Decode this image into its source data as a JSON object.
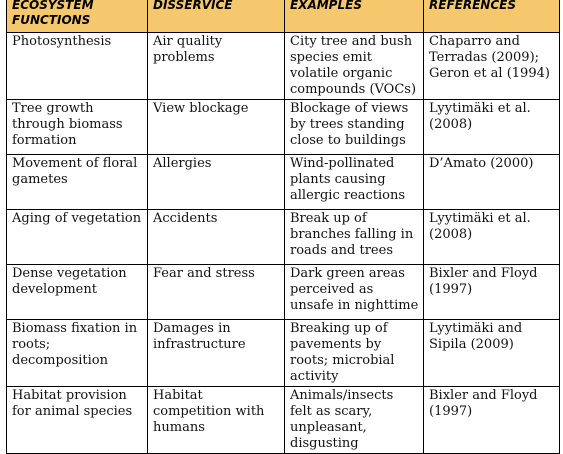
{
  "table": {
    "headers": [
      "ECOSYSTEM\nFUNCTIONS",
      "DISSERVICE",
      "EXAMPLES",
      "REFERENCES"
    ],
    "header_color": "#f6c86e",
    "rows": [
      [
        "Photosynthesis",
        "Air quality\nproblems",
        "City tree and bush\nspecies emit\nvolatile organic\ncompounds (VOCs)",
        "Chaparro and\nTerradas (2009);\nGeron et al (1994)"
      ],
      [
        "Tree growth\nthrough biomass\nformation",
        "View blockage",
        "Blockage of views\nby trees standing\nclose to buildings",
        "Lyytimäki et al.\n(2008)"
      ],
      [
        "Movement of floral\ngametes",
        "Allergies",
        "Wind-pollinated\nplants causing\nallergic reactions",
        "D’Amato (2000)"
      ],
      [
        "Aging of vegetation",
        "Accidents",
        "Break up of\nbranches falling in\nroads and trees",
        "Lyytimäki et al.\n(2008)"
      ],
      [
        "Dense vegetation\ndevelopment",
        "Fear and stress",
        "Dark green areas\nperceived as\nunsafe in nighttime",
        "Bixler and Floyd\n(1997)"
      ],
      [
        "Biomass fixation in\nroots;\ndecomposition",
        "Damages in\ninfrastructure",
        "Breaking up of\npavements by\nroots; microbial\nactivity",
        "Lyytimäki and\nSipila (2009)"
      ],
      [
        "Habitat provision\nfor animal species",
        "Habitat\ncompetition with\nhumans",
        "Animals/insects\nfelt as scary,\nunpleasant,\ndisgusting",
        "Bixler and Floyd\n(1997)"
      ]
    ]
  }
}
